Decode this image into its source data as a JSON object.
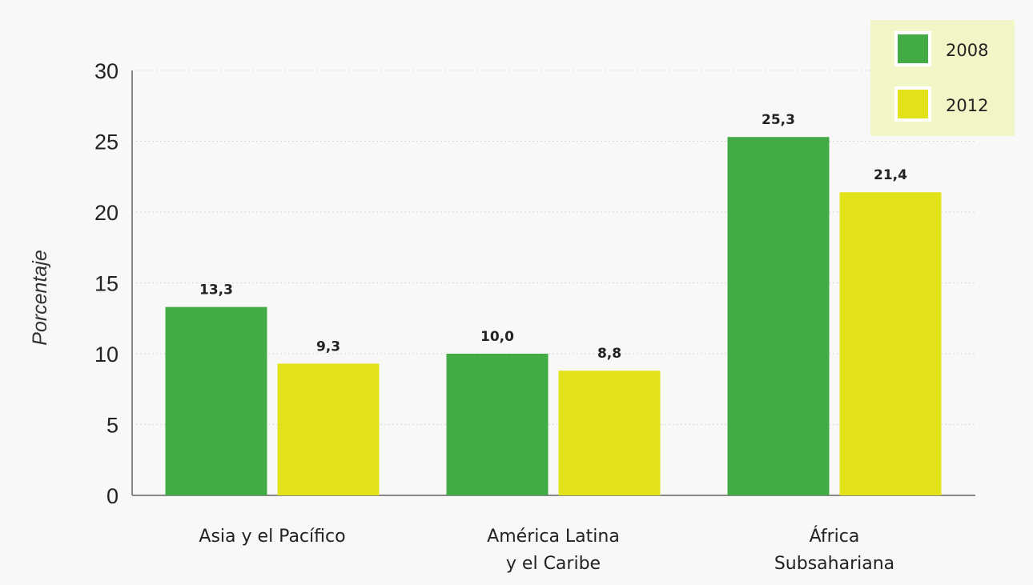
{
  "chart_data": {
    "type": "bar",
    "title": "",
    "xlabel": "",
    "ylabel": "Porcentaje",
    "ylim": [
      0,
      30
    ],
    "yticks": [
      0,
      5,
      10,
      15,
      20,
      25,
      30
    ],
    "grid": true,
    "legend_position": "top-right",
    "categories": [
      [
        "Asia y el Pacífico"
      ],
      [
        "América Latina",
        "y el Caribe"
      ],
      [
        "África",
        "Subsahariana"
      ]
    ],
    "series": [
      {
        "name": "2008",
        "color": "#43ab45",
        "values": [
          13.3,
          10.0,
          25.3
        ],
        "labels": [
          "13,3",
          "10,0",
          "25,3"
        ]
      },
      {
        "name": "2012",
        "color": "#e2e21a",
        "values": [
          9.3,
          8.8,
          21.4
        ],
        "labels": [
          "9,3",
          "8,8",
          "21,4"
        ]
      }
    ],
    "legend_background": "#f2f5c6"
  }
}
